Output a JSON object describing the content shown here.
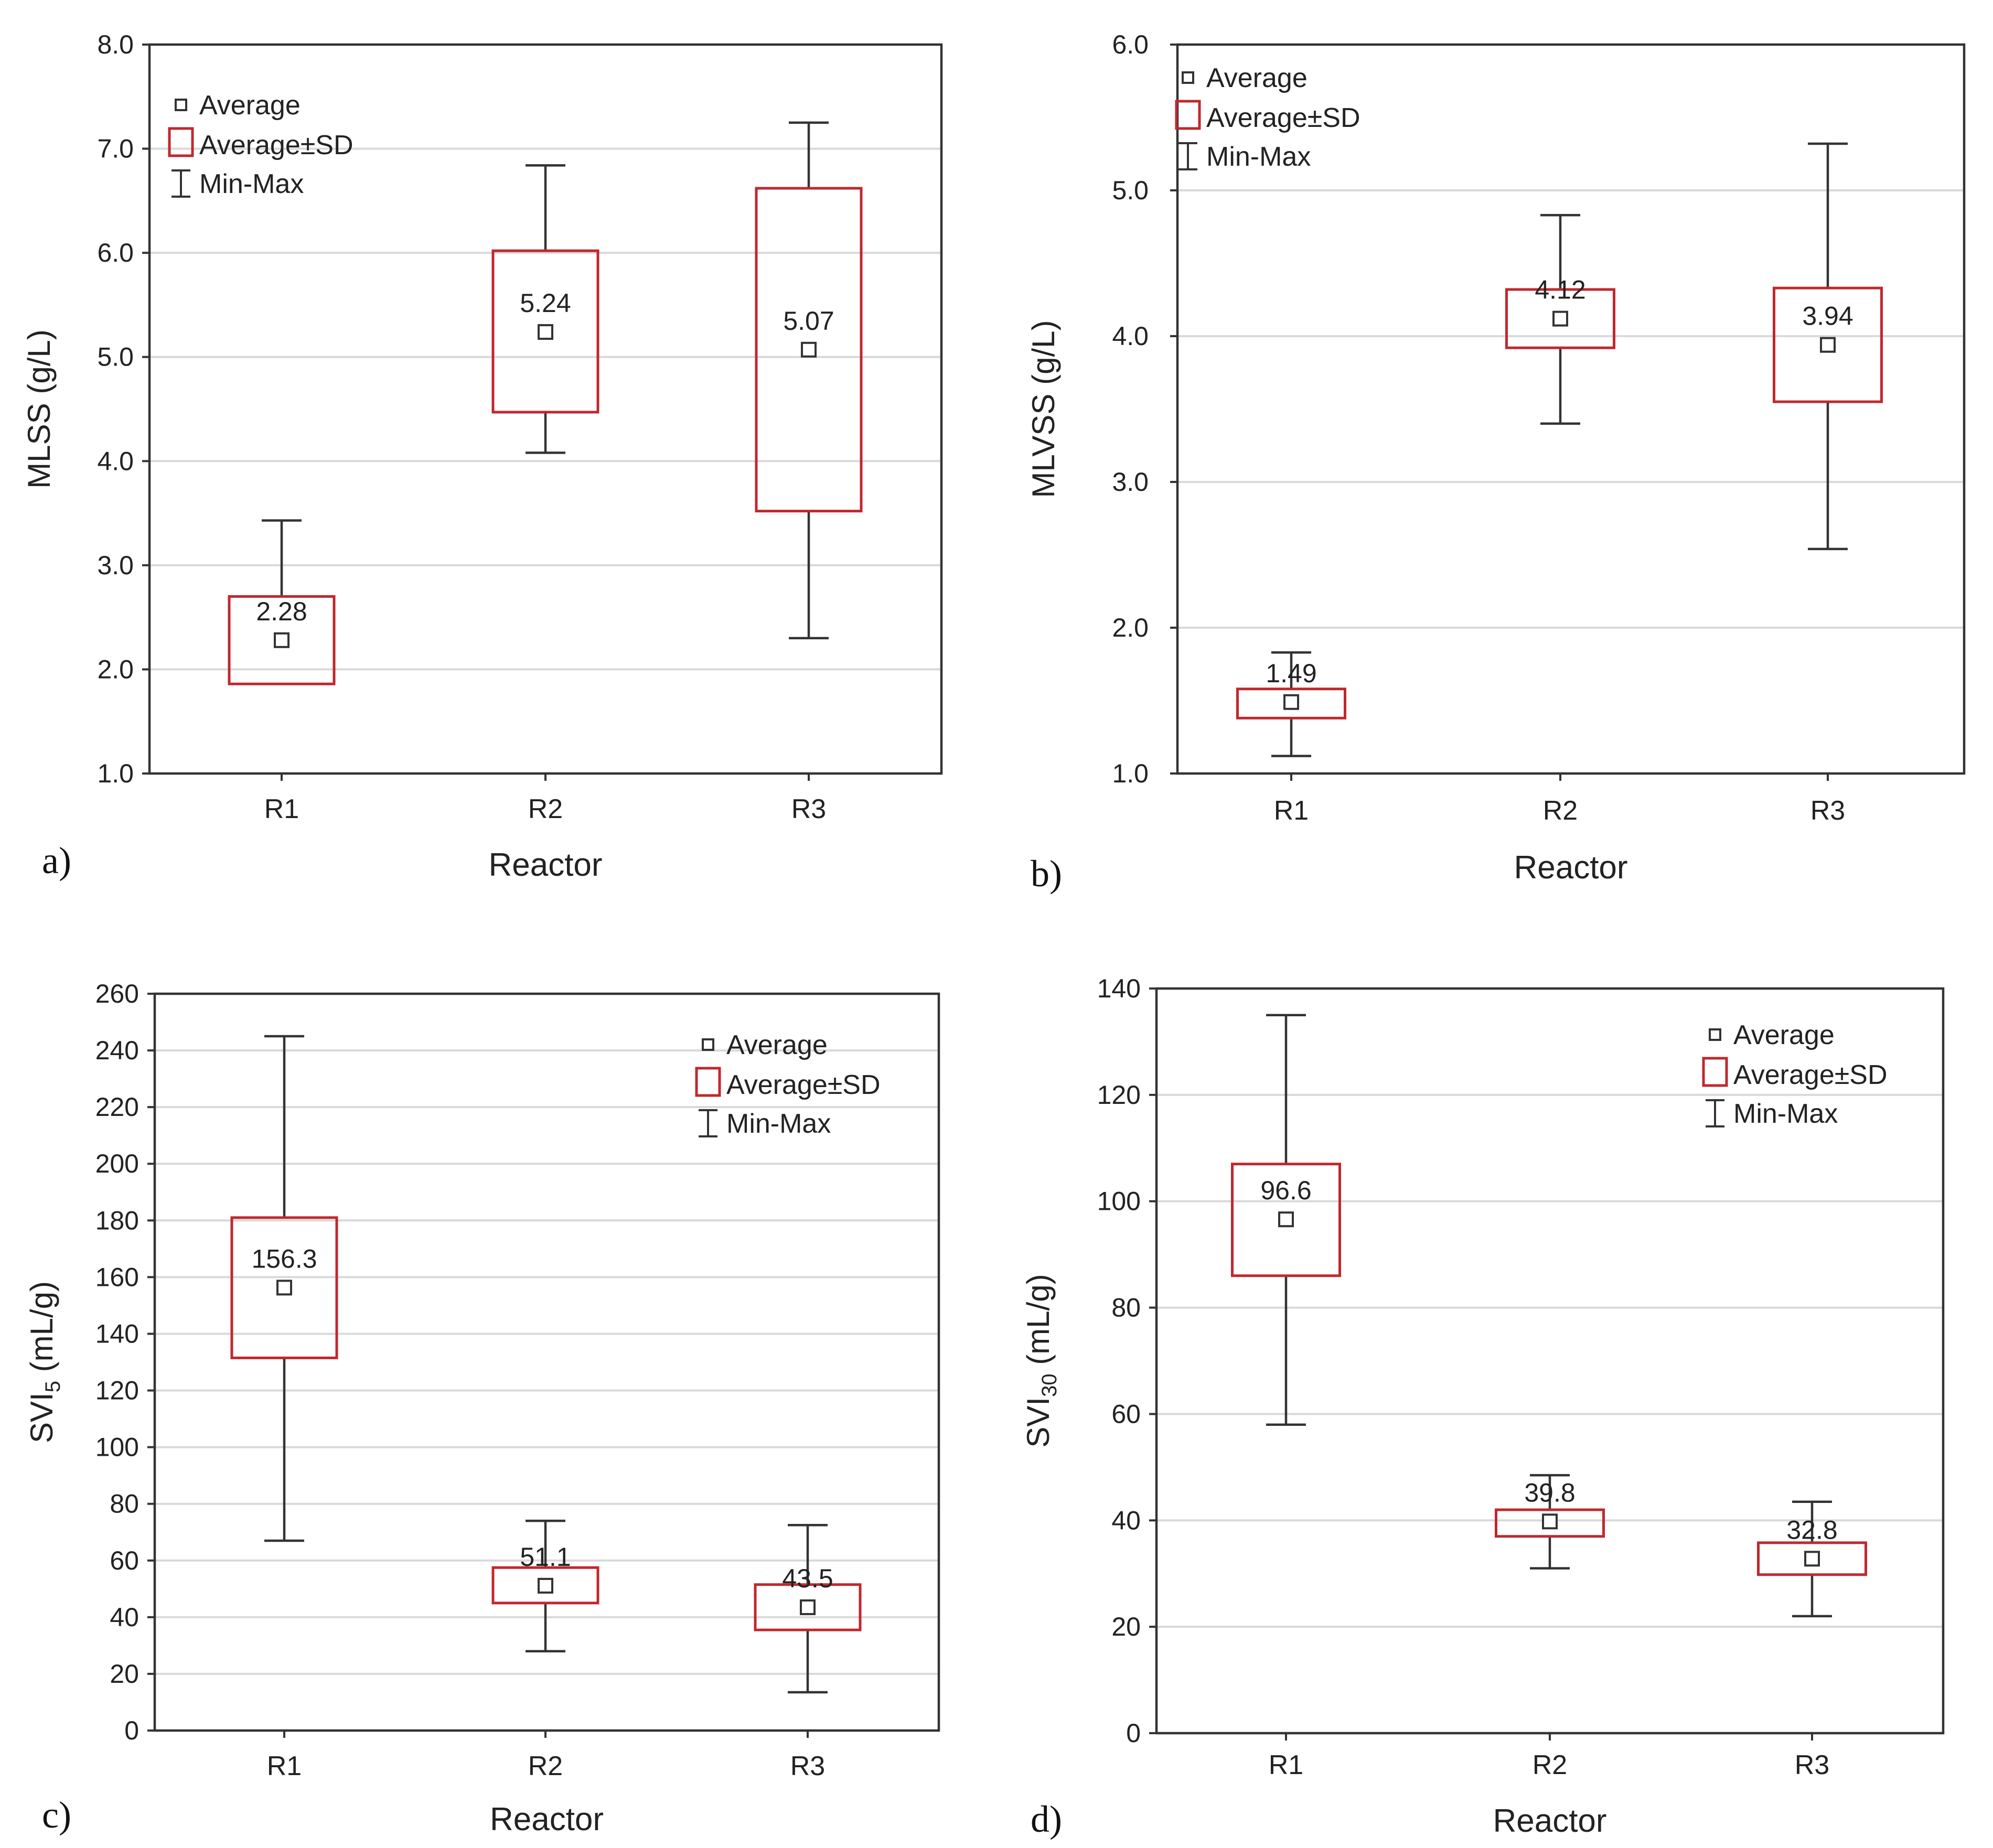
{
  "colors": {
    "frame": "#333333",
    "grid": "#d9d9d9",
    "box": "#c0282d",
    "whisker": "#333333",
    "marker": "#333333",
    "text": "#222222"
  },
  "legend": {
    "average": "Average",
    "sd": "Average±SD",
    "minmax": "Min-Max"
  },
  "chart_data": [
    {
      "panel_label": "a)",
      "type": "box",
      "xlabel": "Reactor",
      "ylabel": "MLSS (g/L)",
      "ylim": [
        1.0,
        8.0
      ],
      "ticks": [
        1,
        2,
        3,
        4,
        5,
        6,
        7,
        8
      ],
      "tick_labels": [
        "1.0",
        "2.0",
        "3.0",
        "4.0",
        "5.0",
        "6.0",
        "7.0",
        "8.0"
      ],
      "legend_position": "top-left",
      "categories": [
        "R1",
        "R2",
        "R3"
      ],
      "series": [
        {
          "category": "R1",
          "average": 2.28,
          "average_label": "2.28",
          "sd_low": 1.86,
          "sd_high": 2.7,
          "min": 1.86,
          "max": 3.43
        },
        {
          "category": "R2",
          "average": 5.24,
          "average_label": "5.24",
          "sd_low": 4.47,
          "sd_high": 6.02,
          "min": 4.08,
          "max": 6.84
        },
        {
          "category": "R3",
          "average": 5.07,
          "average_label": "5.07",
          "sd_low": 3.52,
          "sd_high": 6.62,
          "min": 2.3,
          "max": 7.25
        }
      ]
    },
    {
      "panel_label": "b)",
      "type": "box",
      "xlabel": "Reactor",
      "ylabel": "MLVSS (g/L)",
      "ylim": [
        1.0,
        6.0
      ],
      "ticks": [
        1,
        2,
        3,
        4,
        5,
        6
      ],
      "tick_labels": [
        "1.0",
        "2.0",
        "3.0",
        "4.0",
        "5.0",
        "6.0"
      ],
      "legend_position": "top-left",
      "categories": [
        "R1",
        "R2",
        "R3"
      ],
      "series": [
        {
          "category": "R1",
          "average": 1.49,
          "average_label": "1.49",
          "sd_low": 1.38,
          "sd_high": 1.58,
          "min": 1.12,
          "max": 1.83
        },
        {
          "category": "R2",
          "average": 4.12,
          "average_label": "4.12",
          "sd_low": 3.92,
          "sd_high": 4.32,
          "min": 3.4,
          "max": 4.83
        },
        {
          "category": "R3",
          "average": 3.94,
          "average_label": "3.94",
          "sd_low": 3.55,
          "sd_high": 4.33,
          "min": 2.54,
          "max": 5.32
        }
      ]
    },
    {
      "panel_label": "c)",
      "type": "box",
      "xlabel": "Reactor",
      "ylabel": "SVI",
      "ylabel_sub": "5",
      "ylabel_suffix": " (mL/g)",
      "ylim": [
        0,
        260
      ],
      "ticks": [
        0,
        20,
        40,
        60,
        80,
        100,
        120,
        140,
        160,
        180,
        200,
        220,
        240,
        260
      ],
      "tick_labels": [
        "0",
        "20",
        "40",
        "60",
        "80",
        "100",
        "120",
        "140",
        "160",
        "180",
        "200",
        "220",
        "240",
        "260"
      ],
      "legend_position": "top-right",
      "categories": [
        "R1",
        "R2",
        "R3"
      ],
      "series": [
        {
          "category": "R1",
          "average": 156.3,
          "average_label": "156.3",
          "sd_low": 131.5,
          "sd_high": 181,
          "min": 67,
          "max": 245
        },
        {
          "category": "R2",
          "average": 51.1,
          "average_label": "51.1",
          "sd_low": 45,
          "sd_high": 57.5,
          "min": 28,
          "max": 74
        },
        {
          "category": "R3",
          "average": 43.5,
          "average_label": "43.5",
          "sd_low": 35.5,
          "sd_high": 51.5,
          "min": 13.5,
          "max": 72.5
        }
      ]
    },
    {
      "panel_label": "d)",
      "type": "box",
      "xlabel": "Reactor",
      "ylabel": "SVI",
      "ylabel_sub": "30",
      "ylabel_suffix": " (mL/g)",
      "ylim": [
        0,
        140
      ],
      "ticks": [
        0,
        20,
        40,
        60,
        80,
        100,
        120,
        140
      ],
      "tick_labels": [
        "0",
        "20",
        "40",
        "60",
        "80",
        "100",
        "120",
        "140"
      ],
      "legend_position": "top-right",
      "categories": [
        "R1",
        "R2",
        "R3"
      ],
      "series": [
        {
          "category": "R1",
          "average": 96.6,
          "average_label": "96.6",
          "sd_low": 86,
          "sd_high": 107,
          "min": 58,
          "max": 135
        },
        {
          "category": "R2",
          "average": 39.8,
          "average_label": "39.8",
          "sd_low": 37,
          "sd_high": 42,
          "min": 31,
          "max": 48.5
        },
        {
          "category": "R3",
          "average": 32.8,
          "average_label": "32.8",
          "sd_low": 29.8,
          "sd_high": 35.8,
          "min": 22,
          "max": 43.5
        }
      ]
    }
  ]
}
